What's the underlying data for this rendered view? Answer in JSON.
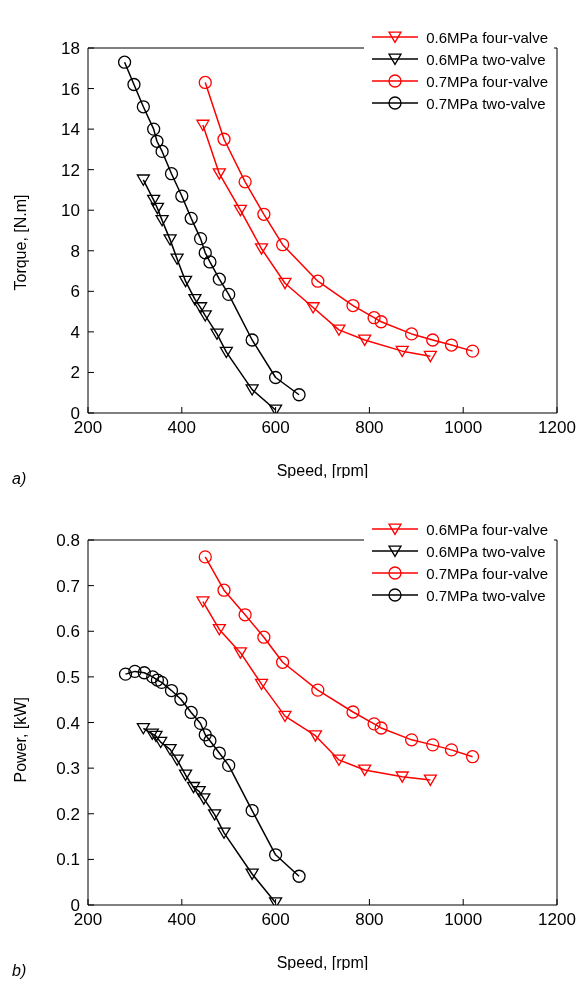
{
  "chart_data": [
    {
      "type": "line",
      "xlabel": "Speed, [rpm]",
      "ylabel": "Torque, [N.m]",
      "xlim": [
        200,
        1200
      ],
      "xticks": [
        200,
        400,
        600,
        800,
        1000,
        1200
      ],
      "ylim": [
        0,
        18
      ],
      "yticks": [
        0,
        2,
        4,
        6,
        8,
        10,
        12,
        14,
        16,
        18
      ],
      "grid": false,
      "legend": "top right",
      "annotations": [
        "a)"
      ],
      "series": [
        {
          "name": "0.6MPa four-valve",
          "color": "#ff0000",
          "marker": "triangle",
          "x": [
            445,
            480,
            525,
            570,
            620,
            680,
            735,
            790,
            870,
            930
          ],
          "values": [
            14.2,
            11.8,
            10.0,
            8.1,
            6.4,
            5.2,
            4.1,
            3.6,
            3.05,
            2.8
          ]
        },
        {
          "name": "0.6MPa two-valve",
          "color": "#000000",
          "marker": "triangle",
          "x": [
            318,
            340,
            348,
            358,
            375,
            390,
            408,
            428,
            440,
            450,
            475,
            495,
            550,
            600
          ],
          "values": [
            11.5,
            10.5,
            10.1,
            9.5,
            8.55,
            7.6,
            6.5,
            5.6,
            5.2,
            4.8,
            3.9,
            3.0,
            1.15,
            0.15
          ]
        },
        {
          "name": "0.7MPa four-valve",
          "color": "#ff0000",
          "marker": "circle",
          "x": [
            450,
            490,
            535,
            575,
            615,
            690,
            765,
            810,
            825,
            890,
            935,
            975,
            1020
          ],
          "values": [
            16.3,
            13.5,
            11.4,
            9.8,
            8.3,
            6.5,
            5.3,
            4.7,
            4.5,
            3.9,
            3.6,
            3.35,
            3.05
          ]
        },
        {
          "name": "0.7MPa two-valve",
          "color": "#000000",
          "marker": "circle",
          "x": [
            278,
            298,
            318,
            340,
            347,
            358,
            378,
            400,
            420,
            440,
            450,
            460,
            480,
            500,
            550,
            600,
            650
          ],
          "values": [
            17.3,
            16.2,
            15.1,
            14.0,
            13.4,
            12.9,
            11.8,
            10.7,
            9.6,
            8.6,
            7.9,
            7.45,
            6.6,
            5.85,
            3.6,
            1.75,
            0.9
          ]
        }
      ]
    },
    {
      "type": "line",
      "xlabel": "Speed, [rpm]",
      "ylabel": "Power, [kW]",
      "xlim": [
        200,
        1200
      ],
      "xticks": [
        200,
        400,
        600,
        800,
        1000,
        1200
      ],
      "ylim": [
        0,
        0.8
      ],
      "yticks": [
        0,
        0.1,
        0.2,
        0.3,
        0.4,
        0.5,
        0.6,
        0.7,
        0.8
      ],
      "grid": false,
      "legend": "top right",
      "annotations": [
        "b)"
      ],
      "series": [
        {
          "name": "0.6MPa four-valve",
          "color": "#ff0000",
          "marker": "triangle",
          "x": [
            445,
            480,
            525,
            570,
            620,
            685,
            735,
            790,
            870,
            930
          ],
          "values": [
            0.665,
            0.604,
            0.553,
            0.484,
            0.414,
            0.371,
            0.318,
            0.296,
            0.281,
            0.274
          ]
        },
        {
          "name": "0.6MPa two-valve",
          "color": "#000000",
          "marker": "triangle",
          "x": [
            318,
            337,
            345,
            355,
            375,
            390,
            408,
            425,
            437,
            447,
            470,
            490,
            550,
            600
          ],
          "values": [
            0.387,
            0.375,
            0.37,
            0.357,
            0.341,
            0.318,
            0.285,
            0.258,
            0.249,
            0.233,
            0.198,
            0.158,
            0.068,
            0.005
          ]
        },
        {
          "name": "0.7MPa four-valve",
          "color": "#ff0000",
          "marker": "circle",
          "x": [
            450,
            490,
            535,
            575,
            615,
            690,
            765,
            810,
            825,
            890,
            935,
            975,
            1020
          ],
          "values": [
            0.763,
            0.69,
            0.636,
            0.587,
            0.532,
            0.471,
            0.423,
            0.397,
            0.388,
            0.362,
            0.351,
            0.34,
            0.325
          ]
        },
        {
          "name": "0.7MPa two-valve",
          "color": "#000000",
          "marker": "circle",
          "x": [
            280,
            300,
            320,
            338,
            348,
            357,
            378,
            398,
            420,
            440,
            450,
            460,
            480,
            500,
            550,
            600,
            650
          ],
          "values": [
            0.506,
            0.512,
            0.509,
            0.5,
            0.493,
            0.488,
            0.47,
            0.451,
            0.422,
            0.398,
            0.373,
            0.36,
            0.333,
            0.306,
            0.207,
            0.11,
            0.063
          ]
        }
      ]
    }
  ]
}
